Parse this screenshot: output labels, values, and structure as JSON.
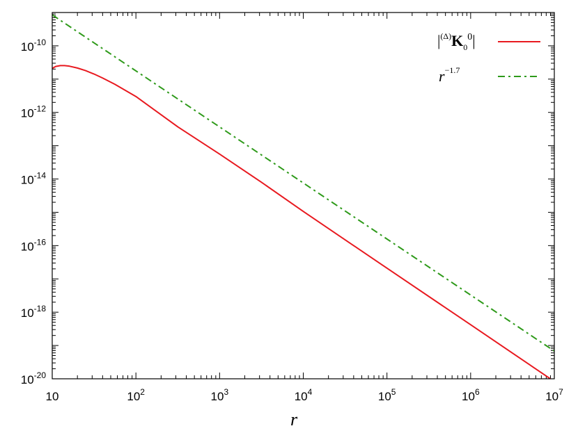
{
  "chart_data": {
    "type": "line",
    "xscale": "log",
    "yscale": "log",
    "xlim": [
      10,
      10000000
    ],
    "ylim": [
      1e-20,
      1e-09
    ],
    "xlabel": "r",
    "ylabel": "",
    "title": "",
    "grid": false,
    "legend_position": "top-right",
    "x_ticks": [
      {
        "base": "10",
        "exp": "",
        "value": 10
      },
      {
        "base": "10",
        "exp": "2",
        "value": 100
      },
      {
        "base": "10",
        "exp": "3",
        "value": 1000
      },
      {
        "base": "10",
        "exp": "4",
        "value": 10000
      },
      {
        "base": "10",
        "exp": "5",
        "value": 100000
      },
      {
        "base": "10",
        "exp": "6",
        "value": 1000000
      },
      {
        "base": "10",
        "exp": "7",
        "value": 10000000
      }
    ],
    "y_ticks": [
      {
        "base": "10",
        "exp": "-20",
        "value": 1e-20
      },
      {
        "base": "10",
        "exp": "-18",
        "value": 1e-18
      },
      {
        "base": "10",
        "exp": "-16",
        "value": 1e-16
      },
      {
        "base": "10",
        "exp": "-14",
        "value": 1e-14
      },
      {
        "base": "10",
        "exp": "-12",
        "value": 1e-12
      },
      {
        "base": "10",
        "exp": "-10",
        "value": 1e-10
      }
    ],
    "series": [
      {
        "name": "|(Δ)K0^0|",
        "color": "#e8191f",
        "style": "solid",
        "x": [
          10,
          11,
          12.5,
          14,
          16,
          20,
          25,
          31.6,
          40,
          56,
          100,
          178,
          316,
          1000,
          3160,
          10000,
          100000,
          1000000,
          10000000
        ],
        "y": [
          2.1e-11,
          2.4e-11,
          2.55e-11,
          2.55e-11,
          2.45e-11,
          2.15e-11,
          1.8e-11,
          1.42e-11,
          1.08e-11,
          7e-12,
          3e-12,
          1.05e-12,
          3.7e-13,
          5.6e-14,
          8e-15,
          1.06e-15,
          2.1e-17,
          4.2e-19,
          8.3e-21
        ]
      },
      {
        "name": "r^-1.7",
        "color": "#2e9a1a",
        "style": "dash-dot",
        "x": [
          10,
          10000000
        ],
        "y": [
          8.5e-10,
          6.8e-20
        ]
      }
    ],
    "legend": {
      "entry1": {
        "abs_open": "|",
        "pre_sup": "(Δ)",
        "main": "K",
        "sub": "0",
        "sup": "0",
        "abs_close": "|"
      },
      "entry2": {
        "base": "r",
        "sup": "−1.7"
      }
    }
  }
}
